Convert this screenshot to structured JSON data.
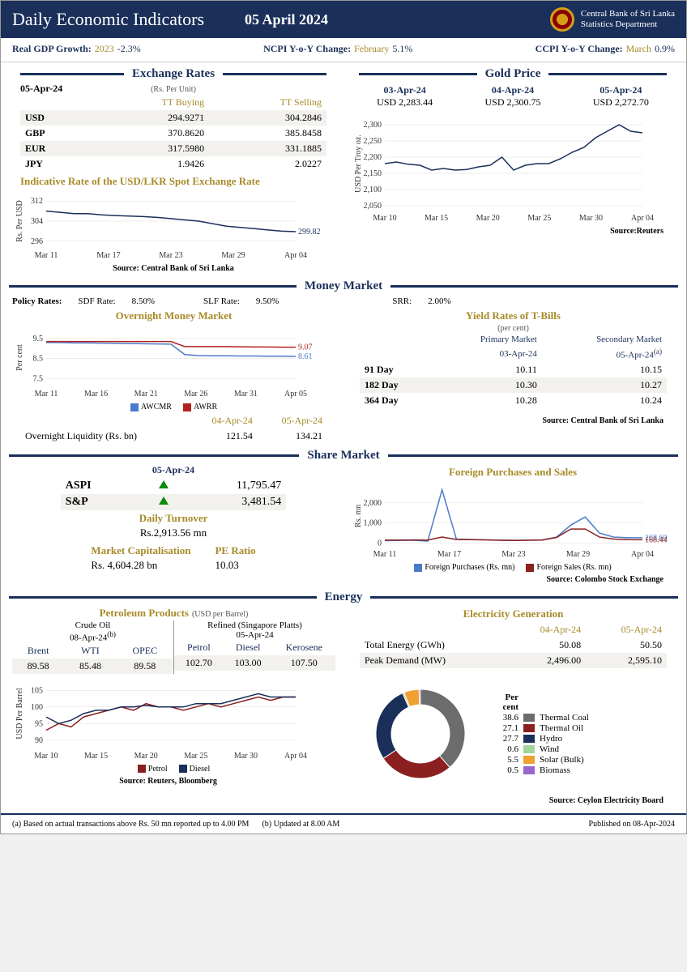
{
  "header": {
    "title": "Daily Economic Indicators",
    "date": "05 April 2024",
    "org_line1": "Central Bank of Sri Lanka",
    "org_line2": "Statistics Department"
  },
  "topIndicators": {
    "gdp_label": "Real GDP Growth:",
    "gdp_period": "2023",
    "gdp_value": "-2.3%",
    "ncpi_label": "NCPI Y-o-Y Change:",
    "ncpi_period": "February",
    "ncpi_value": "5.1%",
    "ccpi_label": "CCPI Y-o-Y Change:",
    "ccpi_period": "March",
    "ccpi_value": "0.9%"
  },
  "exchangeRates": {
    "title": "Exchange Rates",
    "date": "05-Apr-24",
    "unit": "(Rs. Per Unit)",
    "buy_hdr": "TT Buying",
    "sell_hdr": "TT Selling",
    "rows": [
      {
        "cur": "USD",
        "buy": "294.9271",
        "sell": "304.2846"
      },
      {
        "cur": "GBP",
        "buy": "370.8620",
        "sell": "385.8458"
      },
      {
        "cur": "EUR",
        "buy": "317.5980",
        "sell": "331.1885"
      },
      {
        "cur": "JPY",
        "buy": "1.9426",
        "sell": "2.0227"
      }
    ],
    "spot_title": "Indicative Rate of the USD/LKR Spot Exchange Rate",
    "source": "Source: Central Bank of Sri Lanka",
    "chart": {
      "ylabel": "Rs. Per USD",
      "yticks": [
        296,
        304,
        312
      ],
      "ylim": [
        294,
        314
      ],
      "xlabels": [
        "Mar 11",
        "Mar 17",
        "Mar 23",
        "Mar 29",
        "Apr 04"
      ],
      "line_color": "#1a2f5a",
      "values": [
        308,
        307.5,
        307,
        307,
        306.5,
        306.2,
        306,
        305.8,
        305.5,
        305,
        304.5,
        304,
        303,
        302,
        301.5,
        301,
        300.5,
        300,
        299.82
      ],
      "last_label": "299.82"
    }
  },
  "goldPrice": {
    "title": "Gold Price",
    "dates": [
      "03-Apr-24",
      "04-Apr-24",
      "05-Apr-24"
    ],
    "values": [
      "USD 2,283.44",
      "USD 2,300.75",
      "USD 2,272.70"
    ],
    "source": "Source:Reuters",
    "chart": {
      "ylabel": "USD Per Troy oz.",
      "yticks": [
        2050,
        2100,
        2150,
        2200,
        2250,
        2300
      ],
      "ylim": [
        2040,
        2320
      ],
      "xlabels": [
        "Mar 10",
        "Mar 15",
        "Mar 20",
        "Mar 25",
        "Mar 30",
        "Apr 04"
      ],
      "line_color": "#1a2f5a",
      "values": [
        2180,
        2185,
        2178,
        2175,
        2160,
        2165,
        2160,
        2162,
        2170,
        2175,
        2200,
        2160,
        2175,
        2180,
        2180,
        2195,
        2215,
        2230,
        2260,
        2280,
        2300,
        2280,
        2275
      ]
    }
  },
  "moneyMarket": {
    "title": "Money Market",
    "policy": {
      "label": "Policy Rates:",
      "sdf_lbl": "SDF Rate:",
      "sdf_val": "8.50%",
      "slf_lbl": "SLF Rate:",
      "slf_val": "9.50%",
      "srr_lbl": "SRR:",
      "srr_val": "2.00%"
    },
    "overnight_title": "Overnight Money Market",
    "chart": {
      "ylabel": "Per cent",
      "yticks": [
        7.5,
        8.5,
        9.5
      ],
      "ylim": [
        7.2,
        9.9
      ],
      "xlabels": [
        "Mar 11",
        "Mar 16",
        "Mar 21",
        "Mar 26",
        "Mar 31",
        "Apr 05"
      ],
      "series": [
        {
          "name": "AWCMR",
          "color": "#4a7bc8",
          "values": [
            9.3,
            9.3,
            9.28,
            9.28,
            9.27,
            9.26,
            9.25,
            9.24,
            9.23,
            9.22,
            8.7,
            8.65,
            8.64,
            8.64,
            8.63,
            8.63,
            8.62,
            8.62,
            8.61
          ],
          "last": "8.61"
        },
        {
          "name": "AWRR",
          "color": "#b22222",
          "values": [
            9.35,
            9.35,
            9.35,
            9.35,
            9.35,
            9.35,
            9.35,
            9.35,
            9.35,
            9.35,
            9.1,
            9.1,
            9.1,
            9.1,
            9.09,
            9.08,
            9.08,
            9.07,
            9.07
          ],
          "last": "9.07"
        }
      ]
    },
    "liquidity": {
      "label": "Overnight Liquidity (Rs. bn)",
      "dates": [
        "04-Apr-24",
        "05-Apr-24"
      ],
      "values": [
        "121.54",
        "134.21"
      ]
    },
    "tbills": {
      "title": "Yield Rates of T-Bills",
      "unit": "(per cent)",
      "primary_hdr": "Primary Market",
      "secondary_hdr": "Secondary Market",
      "primary_date": "03-Apr-24",
      "secondary_date": "05-Apr-24",
      "note_sup": "(a)",
      "rows": [
        {
          "term": "91 Day",
          "p": "10.11",
          "s": "10.15"
        },
        {
          "term": "182 Day",
          "p": "10.30",
          "s": "10.27"
        },
        {
          "term": "364 Day",
          "p": "10.28",
          "s": "10.24"
        }
      ],
      "source": "Source: Central Bank of Sri Lanka"
    }
  },
  "shareMarket": {
    "title": "Share Market",
    "date": "05-Apr-24",
    "aspi_lbl": "ASPI",
    "aspi_val": "11,795.47",
    "sp_lbl": "S&P",
    "sp_val": "3,481.54",
    "turnover_lbl": "Daily Turnover",
    "turnover_val": "Rs.2,913.56 mn",
    "mcap_lbl": "Market Capitalisation",
    "mcap_val": "Rs. 4,604.28 bn",
    "pe_lbl": "PE Ratio",
    "pe_val": "10.03",
    "foreign_title": "Foreign Purchases and Sales",
    "chart": {
      "ylabel": "Rs. mn",
      "yticks": [
        0,
        1000,
        2000
      ],
      "ylim": [
        -100,
        2800
      ],
      "xlabels": [
        "Mar 11",
        "Mar 17",
        "Mar 23",
        "Mar 29",
        "Apr 04"
      ],
      "series": [
        {
          "name": "Foreign Purchases (Rs. mn)",
          "color": "#4a7bc8",
          "values": [
            120,
            130,
            140,
            100,
            2650,
            200,
            180,
            160,
            150,
            140,
            150,
            160,
            300,
            900,
            1300,
            500,
            300,
            270,
            268.6
          ],
          "last": "268.60"
        },
        {
          "name": "Foreign Sales (Rs. mn)",
          "color": "#8b2020",
          "values": [
            150,
            150,
            160,
            150,
            300,
            180,
            170,
            160,
            140,
            130,
            140,
            150,
            280,
            700,
            700,
            300,
            200,
            170,
            168.44
          ],
          "last": "168.44"
        }
      ]
    },
    "source": "Source: Colombo Stock Exchange"
  },
  "energy": {
    "title": "Energy",
    "petroleum_title": "Petroleum Products",
    "petroleum_unit": "(USD per Barrel)",
    "crude_title": "Crude Oil",
    "crude_date": "08-Apr-24",
    "crude_note": "(b)",
    "refined_title": "Refined (Singapore Platts)",
    "refined_date": "05-Apr-24",
    "crude_rows": [
      {
        "lbl": "Brent",
        "val": "89.58"
      },
      {
        "lbl": "WTI",
        "val": "85.48"
      },
      {
        "lbl": "OPEC",
        "val": "89.58"
      }
    ],
    "refined_rows": [
      {
        "lbl": "Petrol",
        "val": "102.70"
      },
      {
        "lbl": "Diesel",
        "val": "103.00"
      },
      {
        "lbl": "Kerosene",
        "val": "107.50"
      }
    ],
    "chart": {
      "ylabel": "USD Per Barrel",
      "yticks": [
        90,
        95,
        100,
        105
      ],
      "ylim": [
        88,
        108
      ],
      "xlabels": [
        "Mar 10",
        "Mar 15",
        "Mar 20",
        "Mar 25",
        "Mar 30",
        "Apr 04"
      ],
      "series": [
        {
          "name": "Petrol",
          "color": "#8b2020",
          "values": [
            93,
            95,
            94,
            97,
            98,
            99,
            100,
            99,
            101,
            100,
            100,
            99,
            100,
            101,
            100,
            101,
            102,
            103,
            102,
            103,
            103
          ]
        },
        {
          "name": "Diesel",
          "color": "#1a2f5a",
          "values": [
            97,
            95,
            96,
            98,
            99,
            99,
            100,
            100,
            100.5,
            100,
            100,
            100,
            101,
            101,
            101,
            102,
            103,
            104,
            103,
            103,
            103
          ]
        }
      ]
    },
    "petroleum_source": "Source: Reuters, Bloomberg",
    "electricity_title": "Electricity Generation",
    "elec_dates": [
      "04-Apr-24",
      "05-Apr-24"
    ],
    "elec_rows": [
      {
        "lbl": "Total Energy (GWh)",
        "v1": "50.08",
        "v2": "50.50"
      },
      {
        "lbl": "Peak Demand (MW)",
        "v1": "2,496.00",
        "v2": "2,595.10"
      }
    ],
    "elec_pct_lbl": "Per cent",
    "elec_mix": [
      {
        "lbl": "Thermal Coal",
        "pct": "38.6",
        "color": "#6c6c6c"
      },
      {
        "lbl": "Thermal Oil",
        "pct": "27.1",
        "color": "#8b2020"
      },
      {
        "lbl": "Hydro",
        "pct": "27.7",
        "color": "#1a2f5a"
      },
      {
        "lbl": "Wind",
        "pct": "0.6",
        "color": "#a6d49f"
      },
      {
        "lbl": "Solar (Bulk)",
        "pct": "5.5",
        "color": "#f0a030"
      },
      {
        "lbl": "Biomass",
        "pct": "0.5",
        "color": "#9966cc"
      }
    ],
    "elec_source": "Source: Ceylon Electricity Board"
  },
  "footnotes": {
    "a": "(a) Based on actual transactions above Rs. 50 mn reported up to 4.00 PM",
    "b": "(b) Updated at 8.00 AM",
    "pub": "Published on  08-Apr-2024"
  }
}
